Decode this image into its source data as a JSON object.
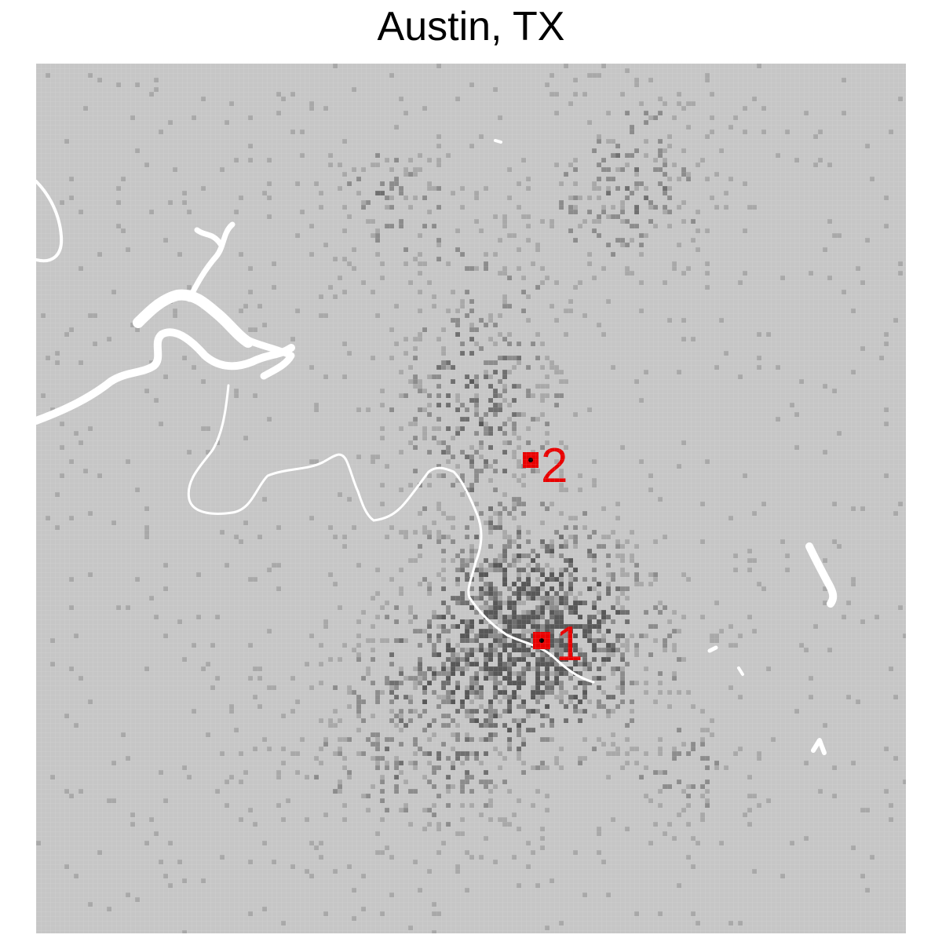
{
  "title": "Austin, TX",
  "colors": {
    "background": "#c6c6c6",
    "density_shades": [
      "#a8a8a8",
      "#8c8c8c",
      "#707070",
      "#585858"
    ],
    "water": "#ffffff",
    "marker": "#e80000",
    "marker_center": "#000000"
  },
  "markers": [
    {
      "id": "1",
      "label": "1"
    },
    {
      "id": "2",
      "label": "2"
    }
  ]
}
